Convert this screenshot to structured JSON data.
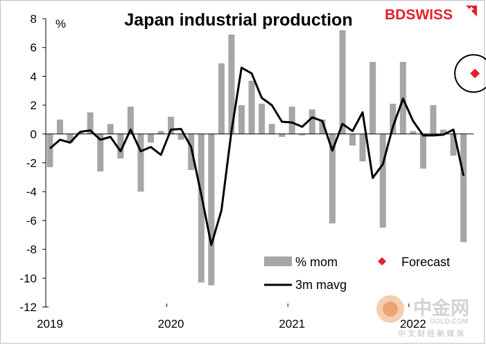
{
  "chart_data": {
    "type": "bar",
    "title": "Japan industrial production",
    "ylabel": "%",
    "xlabel": "",
    "ylim": [
      -12,
      8
    ],
    "yticks": [
      8,
      6,
      4,
      2,
      0,
      -2,
      -4,
      -6,
      -8,
      -10,
      -12
    ],
    "xticks": [
      {
        "label": "2019",
        "index": 0
      },
      {
        "label": "2020",
        "index": 12
      },
      {
        "label": "2021",
        "index": 24
      },
      {
        "label": "2022",
        "index": 36
      }
    ],
    "categories": [
      "2019-01",
      "2019-02",
      "2019-03",
      "2019-04",
      "2019-05",
      "2019-06",
      "2019-07",
      "2019-08",
      "2019-09",
      "2019-10",
      "2019-11",
      "2019-12",
      "2020-01",
      "2020-02",
      "2020-03",
      "2020-04",
      "2020-05",
      "2020-06",
      "2020-07",
      "2020-08",
      "2020-09",
      "2020-10",
      "2020-11",
      "2020-12",
      "2021-01",
      "2021-02",
      "2021-03",
      "2021-04",
      "2021-05",
      "2021-06",
      "2021-07",
      "2021-08",
      "2021-09",
      "2021-10",
      "2021-11",
      "2021-12",
      "2022-01",
      "2022-02",
      "2022-03",
      "2022-04",
      "2022-05",
      "2022-06"
    ],
    "series": [
      {
        "name": "% mom",
        "kind": "bar",
        "color": "#a6a6a6",
        "values": [
          -2.3,
          1.0,
          -0.6,
          0.1,
          1.5,
          -2.6,
          0.7,
          -1.7,
          1.9,
          -4.0,
          -0.6,
          0.2,
          1.2,
          -0.4,
          -2.5,
          -10.3,
          -10.5,
          4.9,
          6.9,
          2.0,
          3.7,
          2.1,
          0.7,
          -0.2,
          1.9,
          -0.1,
          1.7,
          1.0,
          -6.2,
          7.2,
          -0.8,
          -1.9,
          5.0,
          -6.5,
          2.1,
          5.0,
          0.2,
          -2.4,
          2.0,
          0.3,
          -1.5,
          -7.5
        ]
      },
      {
        "name": "3m mavg",
        "kind": "line",
        "color": "#000000",
        "values": [
          -1.0,
          -0.4,
          -0.6,
          0.15,
          0.25,
          -0.4,
          -0.2,
          -1.2,
          0.3,
          -1.2,
          -0.9,
          -1.45,
          0.3,
          0.35,
          -0.9,
          -4.2,
          -7.7,
          -5.3,
          0.2,
          4.6,
          4.2,
          2.5,
          2.0,
          0.85,
          0.8,
          0.5,
          1.15,
          0.9,
          -1.15,
          0.7,
          0.2,
          1.5,
          -3.05,
          -2.1,
          0.5,
          2.45,
          0.9,
          -0.1,
          -0.1,
          -0.05,
          0.3,
          -2.9
        ]
      },
      {
        "name": "Forecast",
        "kind": "marker",
        "color": "#e3212b",
        "index": 42,
        "value": 4.2
      }
    ],
    "legend": {
      "placement": "bottom-right",
      "items": [
        {
          "label": "% mom",
          "kind": "bar"
        },
        {
          "label": "Forecast",
          "kind": "marker"
        },
        {
          "label": "3m mavg",
          "kind": "line"
        }
      ]
    }
  },
  "branding": {
    "logo_text": "BDSWISS",
    "watermark_name": "中金网",
    "watermark_url": "GOLD.COM",
    "watermark_sub": "中 文 财 经 新 媒 体"
  }
}
